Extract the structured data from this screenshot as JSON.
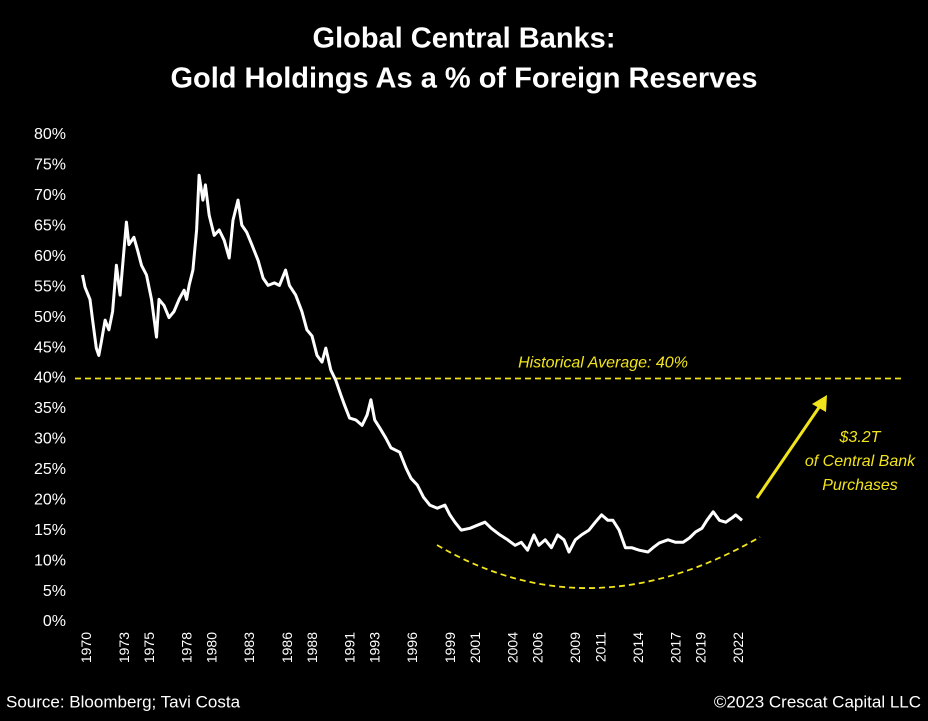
{
  "chart_data": {
    "type": "line",
    "title": [
      "Global Central Banks:",
      "Gold Holdings As a % of Foreign Reserves"
    ],
    "color": "#ffffff",
    "x": [
      1969.6,
      1969.8,
      1970.2,
      1970.4,
      1970.7,
      1970.9,
      1971.1,
      1971.4,
      1971.7,
      1972.0,
      1972.3,
      1972.6,
      1972.9,
      1973.1,
      1973.3,
      1973.7,
      1974.0,
      1974.3,
      1974.7,
      1975.1,
      1975.5,
      1975.7,
      1976.1,
      1976.5,
      1976.9,
      1977.3,
      1977.7,
      1977.9,
      1978.1,
      1978.4,
      1978.7,
      1978.9,
      1979.2,
      1979.4,
      1979.7,
      1980.1,
      1980.5,
      1980.9,
      1981.3,
      1981.6,
      1982.0,
      1982.3,
      1982.7,
      1983.1,
      1983.6,
      1984.0,
      1984.4,
      1984.9,
      1985.3,
      1985.8,
      1986.1,
      1986.6,
      1987.1,
      1987.5,
      1987.9,
      1988.3,
      1988.7,
      1989.0,
      1989.4,
      1989.8,
      1990.2,
      1990.5,
      1990.9,
      1991.4,
      1991.9,
      1992.3,
      1992.6,
      1992.9,
      1993.3,
      1993.8,
      1994.2,
      1994.9,
      1995.4,
      1995.8,
      1996.3,
      1996.8,
      1997.3,
      1997.9,
      1998.5,
      1998.9,
      1999.3,
      1999.8,
      2000.5,
      2001.1,
      2001.7,
      2002.2,
      2002.9,
      2003.5,
      2004.1,
      2004.6,
      2005.1,
      2005.6,
      2006.0,
      2006.5,
      2007.0,
      2007.5,
      2008.0,
      2008.4,
      2008.9,
      2009.4,
      2010.0,
      2010.5,
      2011.0,
      2011.5,
      2011.9,
      2012.4,
      2012.9,
      2013.4,
      2014.0,
      2014.7,
      2015.1,
      2015.6,
      2016.3,
      2016.9,
      2017.5,
      2018.0,
      2018.5,
      2019.0,
      2019.4,
      2019.9,
      2020.4,
      2020.9,
      2021.4,
      2021.7,
      2022.2
    ],
    "values": [
      57,
      55,
      53,
      49.6,
      45,
      43.8,
      46,
      49.6,
      48,
      51,
      58.6,
      53.7,
      61,
      65.7,
      62,
      63.2,
      61,
      58.6,
      57,
      53,
      46.8,
      53,
      52,
      50,
      51,
      53,
      54.5,
      53,
      55.3,
      57.8,
      64.4,
      73.4,
      69.3,
      71.8,
      66.8,
      63.5,
      64.4,
      62.7,
      59.8,
      66,
      69.3,
      65.2,
      64,
      62,
      59.4,
      56.5,
      55.3,
      55.7,
      55.3,
      57.8,
      55.3,
      53.7,
      51,
      48,
      47,
      43.8,
      42.7,
      45,
      41.4,
      39.7,
      37.3,
      35.6,
      33.5,
      33.2,
      32.3,
      34,
      36.5,
      33.2,
      31.9,
      30.2,
      28.6,
      27.9,
      25.3,
      23.6,
      22.5,
      20.5,
      19.2,
      18.7,
      19.2,
      17.6,
      16.4,
      15.1,
      15.4,
      15.9,
      16.4,
      15.4,
      14.3,
      13.5,
      12.6,
      13.1,
      11.8,
      14.3,
      12.6,
      13.5,
      12.2,
      14.3,
      13.5,
      11.5,
      13.5,
      14.3,
      15.1,
      16.4,
      17.6,
      16.7,
      16.7,
      15.1,
      12.2,
      12.2,
      11.8,
      11.5,
      12.2,
      13,
      13.5,
      13.1,
      13.1,
      13.8,
      14.8,
      15.4,
      16.7,
      18.1,
      16.7,
      16.4,
      17.1,
      17.6,
      16.7
    ],
    "xlim": [
      1969,
      2035.2
    ],
    "xticks": [
      1970,
      1973,
      1975,
      1978,
      1980,
      1983,
      1986,
      1988,
      1991,
      1993,
      1996,
      1999,
      2001,
      2004,
      2006,
      2009,
      2011,
      2014,
      2017,
      2019,
      2022
    ],
    "ylim": [
      0,
      80
    ],
    "yticks": [
      {
        "value": 0,
        "label": "0%"
      },
      {
        "value": 5,
        "label": "5%"
      },
      {
        "value": 10,
        "label": "10%"
      },
      {
        "value": 15,
        "label": "15%"
      },
      {
        "value": 20,
        "label": "20%"
      },
      {
        "value": 25,
        "label": "25%"
      },
      {
        "value": 30,
        "label": "30%"
      },
      {
        "value": 35,
        "label": "35%"
      },
      {
        "value": 40,
        "label": "40%"
      },
      {
        "value": 45,
        "label": "45%"
      },
      {
        "value": 50,
        "label": "50%"
      },
      {
        "value": 55,
        "label": "55%"
      },
      {
        "value": 60,
        "label": "60%"
      },
      {
        "value": 65,
        "label": "65%"
      },
      {
        "value": 70,
        "label": "70%"
      },
      {
        "value": 75,
        "label": "75%"
      },
      {
        "value": 80,
        "label": "80%"
      }
    ],
    "reference_line": {
      "value": 40,
      "label": "Historical Average: 40%",
      "color": "#f2e41c"
    },
    "annotation": [
      "$3.2T",
      "of Central Bank",
      "Purchases"
    ],
    "source": "Source: Bloomberg; Tavi Costa",
    "copyright": "©2023 Crescat Capital LLC"
  }
}
